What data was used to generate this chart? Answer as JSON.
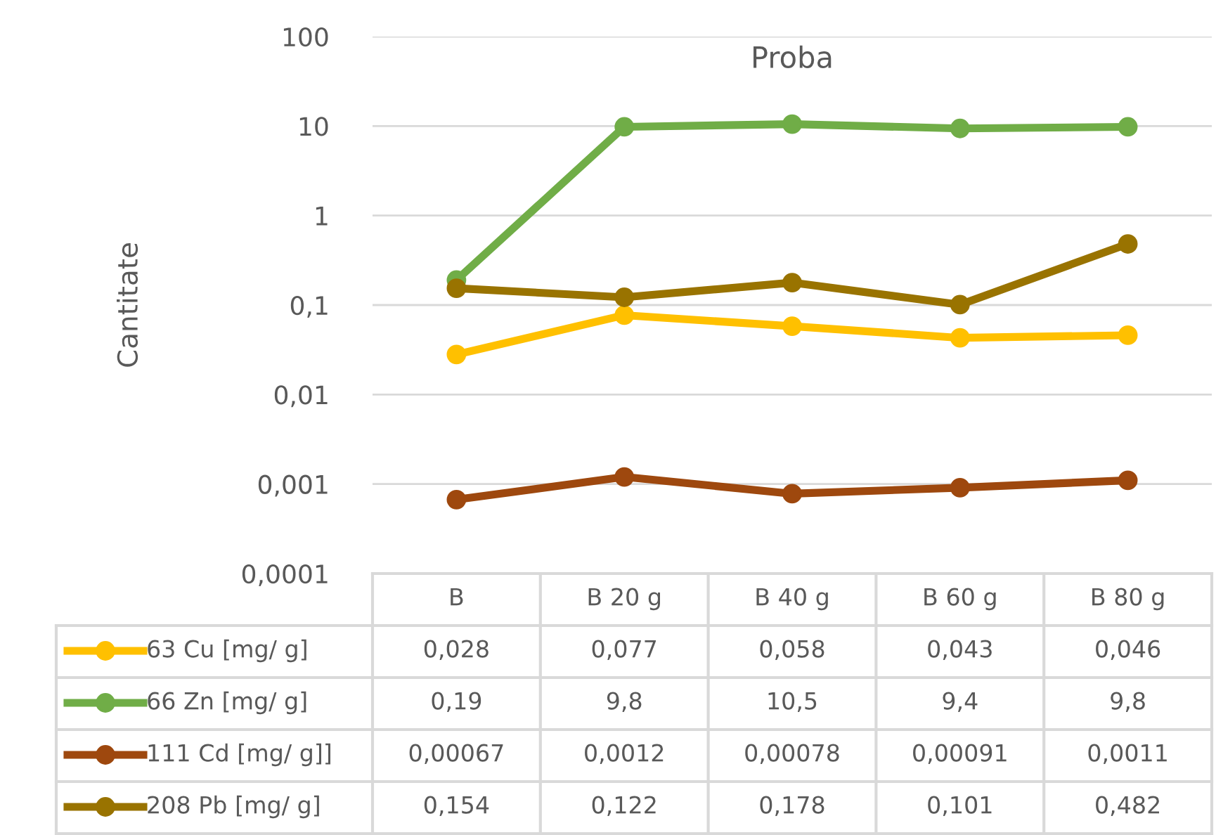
{
  "chart_data": {
    "type": "line",
    "title": "Proba",
    "ylabel": "Cantitate",
    "categories": [
      "B",
      "B 20 g",
      "B 40 g",
      "B 60 g",
      "B 80 g"
    ],
    "series": [
      {
        "name": "63 Cu [mg/ g]",
        "color": "#ffc000",
        "values": [
          0.028,
          0.077,
          0.058,
          0.043,
          0.046
        ],
        "value_labels": [
          "0,028",
          "0,077",
          "0,058",
          "0,043",
          "0,046"
        ]
      },
      {
        "name": "66 Zn [mg/ g]",
        "color": "#70ad47",
        "values": [
          0.19,
          9.8,
          10.5,
          9.4,
          9.8
        ],
        "value_labels": [
          "0,19",
          "9,8",
          "10,5",
          "9,4",
          "9,8"
        ]
      },
      {
        "name": "111 Cd [mg/ g]]",
        "color": "#9e480e",
        "values": [
          0.00067,
          0.0012,
          0.00078,
          0.00091,
          0.0011
        ],
        "value_labels": [
          "0,00067",
          "0,0012",
          "0,00078",
          "0,00091",
          "0,0011"
        ]
      },
      {
        "name": "208 Pb [mg/ g]",
        "color": "#997300",
        "values": [
          0.154,
          0.122,
          0.178,
          0.101,
          0.482
        ],
        "value_labels": [
          "0,154",
          "0,122",
          "0,178",
          "0,101",
          "0,482"
        ]
      }
    ],
    "log": "y",
    "ylim": [
      0.0001,
      100
    ],
    "yticks": [
      {
        "value": 0.0001,
        "label": "0,0001"
      },
      {
        "value": 0.001,
        "label": "0,001"
      },
      {
        "value": 0.01,
        "label": "0,01"
      },
      {
        "value": 0.1,
        "label": "0,1"
      },
      1,
      10,
      100
    ],
    "grid": "y",
    "legend": "bottom",
    "marker": "circle",
    "line_style": "solid"
  }
}
